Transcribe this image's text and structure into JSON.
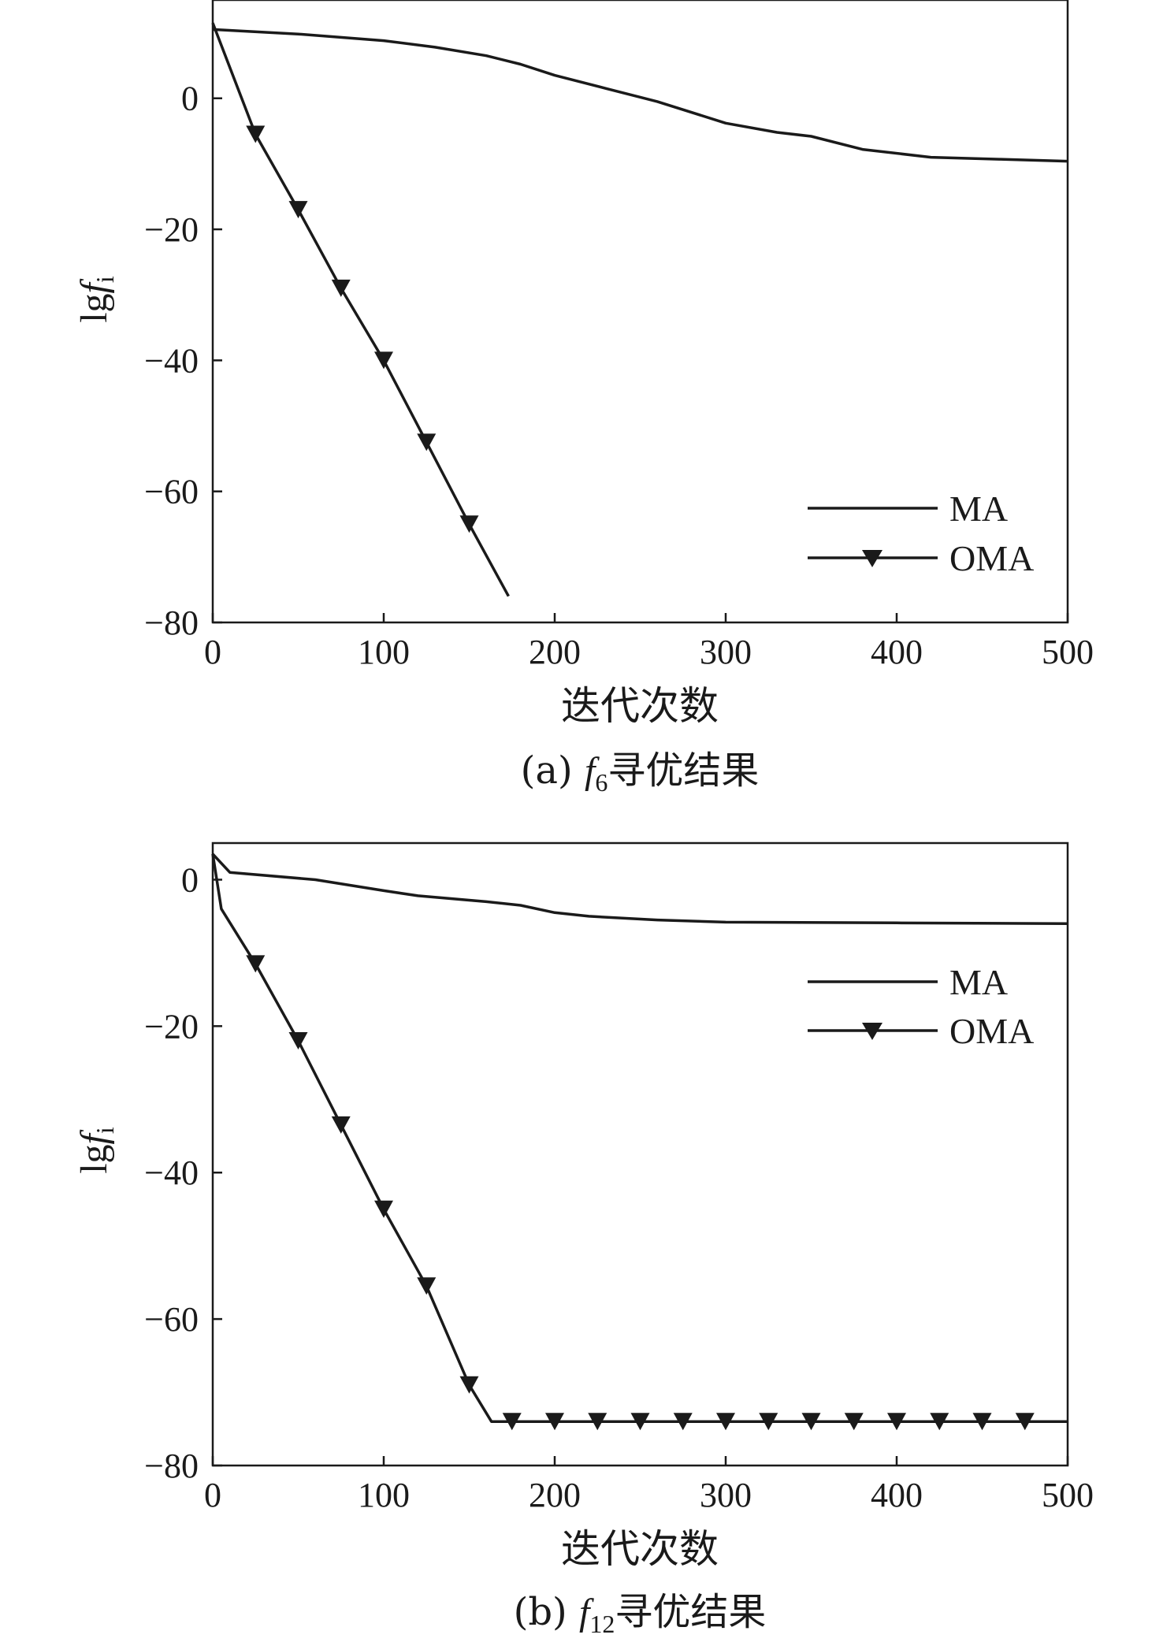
{
  "colors": {
    "ink": "#1a1a1a",
    "background": "#ffffff"
  },
  "chart_data": [
    {
      "type": "line",
      "caption": {
        "prefix": "(a) ",
        "f": "f",
        "sub": "6",
        "suffix": "寻优结果"
      },
      "title": "",
      "xlabel": "迭代次数",
      "ylabel": {
        "prefix": "lg",
        "f": "f",
        "sub": "i"
      },
      "xlim": [
        0,
        500
      ],
      "ylim": [
        -80,
        15
      ],
      "xticks": [
        0,
        100,
        200,
        300,
        400,
        500
      ],
      "yticks": [
        -80,
        -60,
        -40,
        -20,
        0
      ],
      "grid": false,
      "legend": "right, lower",
      "series": [
        {
          "name": "MA",
          "marker": "none",
          "x": [
            0,
            50,
            100,
            130,
            160,
            180,
            200,
            230,
            260,
            300,
            330,
            350,
            380,
            420,
            460,
            500
          ],
          "y": [
            10.5,
            9.8,
            8.8,
            7.8,
            6.5,
            5.2,
            3.5,
            1.5,
            -0.5,
            -3.8,
            -5.2,
            -5.8,
            -7.8,
            -9.0,
            -9.3,
            -9.6
          ]
        },
        {
          "name": "OMA",
          "marker": "triangle-down",
          "x": [
            0,
            25,
            50,
            75,
            100,
            125,
            150,
            173
          ],
          "y": [
            11.5,
            -5.5,
            -17,
            -29,
            -40,
            -52.5,
            -65,
            -76
          ],
          "marker_x": [
            25,
            50,
            75,
            100,
            125,
            150
          ]
        }
      ]
    },
    {
      "type": "line",
      "caption": {
        "prefix": "(b) ",
        "f": "f",
        "sub": "12",
        "suffix": "寻优结果"
      },
      "title": "",
      "xlabel": "迭代次数",
      "ylabel": {
        "prefix": "lg",
        "f": "f",
        "sub": "i"
      },
      "xlim": [
        0,
        500
      ],
      "ylim": [
        -80,
        5
      ],
      "xticks": [
        0,
        100,
        200,
        300,
        400,
        500
      ],
      "yticks": [
        -80,
        -60,
        -40,
        -20,
        0
      ],
      "grid": false,
      "legend": "right, upper",
      "series": [
        {
          "name": "MA",
          "marker": "none",
          "x": [
            0,
            10,
            60,
            100,
            120,
            130,
            160,
            180,
            200,
            220,
            260,
            300,
            400,
            500
          ],
          "y": [
            3.5,
            1.0,
            0.0,
            -1.5,
            -2.2,
            -2.4,
            -3.0,
            -3.5,
            -4.5,
            -5.0,
            -5.5,
            -5.8,
            -5.9,
            -6.0
          ]
        },
        {
          "name": "OMA",
          "marker": "triangle-down",
          "x": [
            0,
            5,
            25,
            50,
            75,
            100,
            125,
            150,
            163,
            175,
            200,
            300,
            400,
            500
          ],
          "y": [
            3.5,
            -4,
            -11.5,
            -22,
            -33.5,
            -45,
            -55.5,
            -69,
            -74,
            -74,
            -74,
            -74,
            -74,
            -74
          ],
          "marker_x": [
            25,
            50,
            75,
            100,
            125,
            150,
            175,
            200,
            225,
            250,
            275,
            300,
            325,
            350,
            375,
            400,
            425,
            450,
            475
          ]
        }
      ]
    }
  ]
}
